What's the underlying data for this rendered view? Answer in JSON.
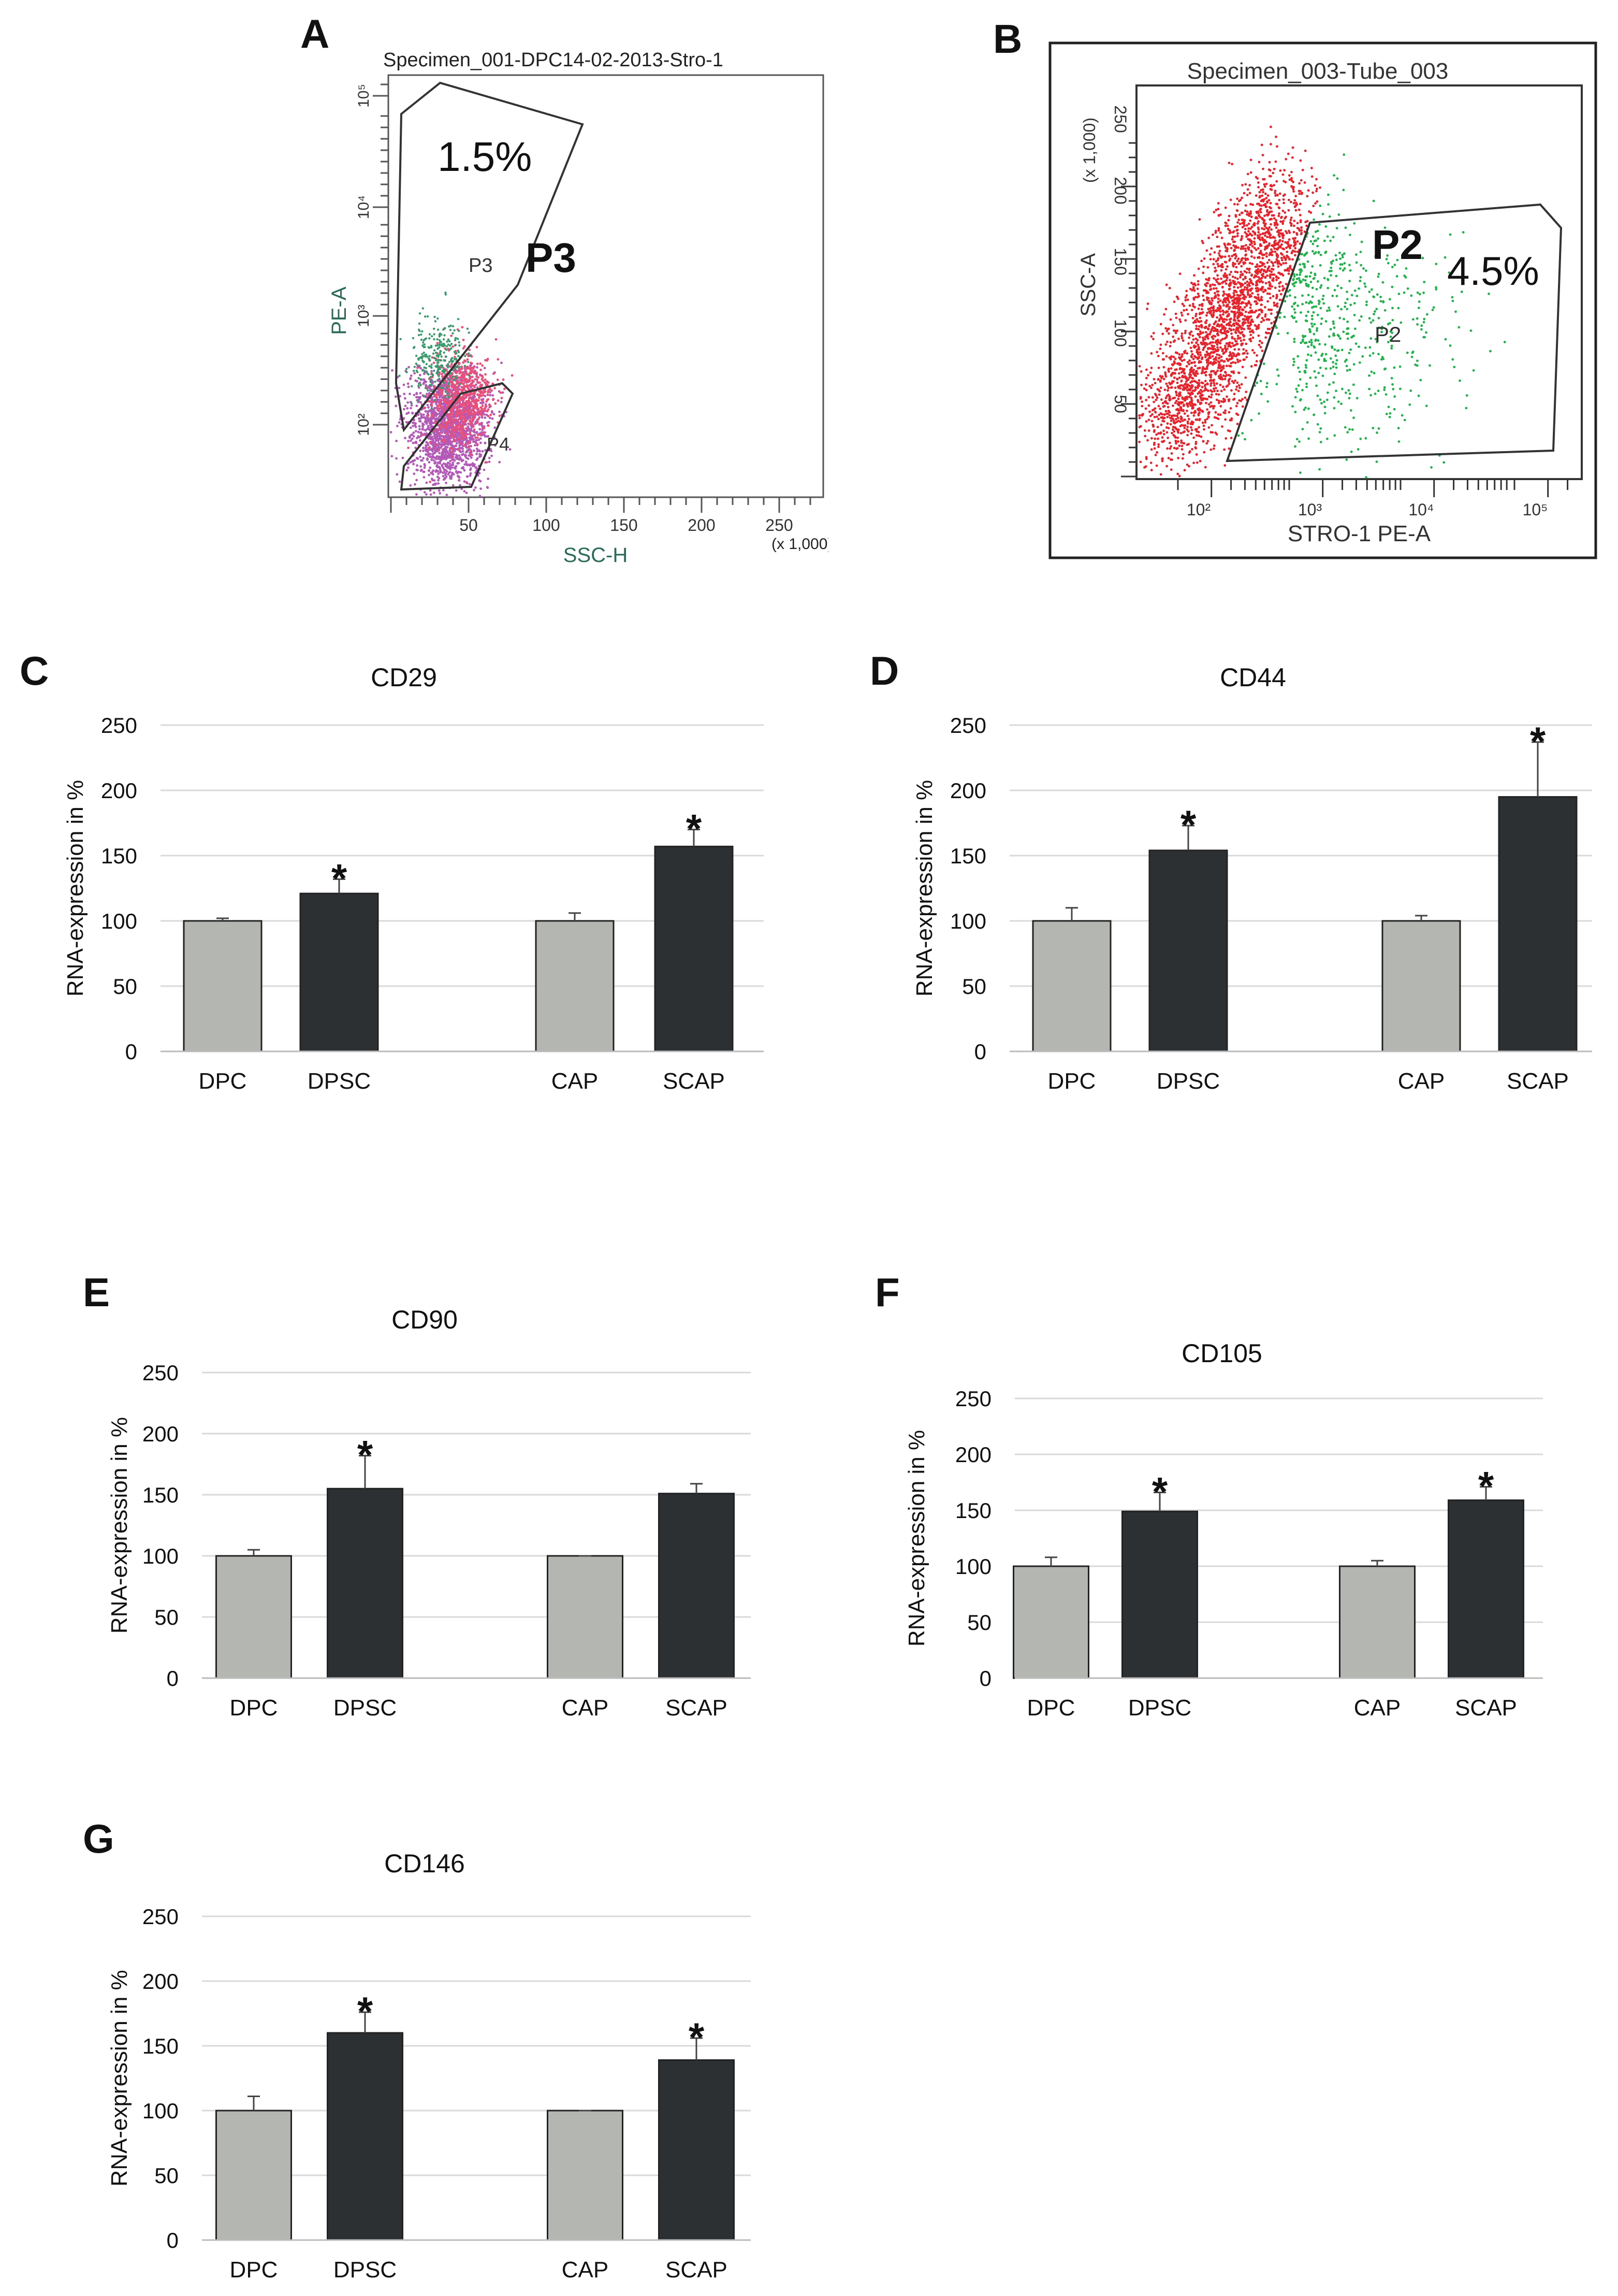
{
  "figure": {
    "panel_letters": [
      "A",
      "B",
      "C",
      "D",
      "E",
      "F",
      "G"
    ]
  },
  "panel_a": {
    "letter": "A",
    "title": "Specimen_001-DPC14-02-2013-Stro-1",
    "x_axis_label": "SSC-H",
    "x_axis_unit": "(x 1,000)",
    "y_axis_label": "PE-A",
    "x_ticks": [
      "50",
      "100",
      "150",
      "200",
      "250"
    ],
    "y_ticks": [
      "10²",
      "10³",
      "10⁴",
      "10⁵"
    ],
    "gate_p3_label": "P3",
    "gate_p3_big_label": "P3",
    "gate_p3_percent": "1.5%",
    "gate_p4_label": "P4",
    "colors": {
      "green_events": "#3a9a6e",
      "pink_events": "#e8507a",
      "purple_events": "#b35ab8"
    }
  },
  "panel_b": {
    "letter": "B",
    "title": "Specimen_003-Tube_003",
    "x_axis_label": "STRO-1 PE-A",
    "y_axis_label": "SSC-A",
    "y_axis_unit": "(x 1,000)",
    "x_ticks": [
      "10²",
      "10³",
      "10⁴",
      "10⁵"
    ],
    "y_ticks": [
      "50",
      "100",
      "150",
      "200",
      "250"
    ],
    "gate_p2_label": "P2",
    "gate_p2_big_label": "P2",
    "gate_p2_percent": "4.5%",
    "colors": {
      "red_events": "#e8232b",
      "green_events": "#22b24c"
    }
  },
  "chart_data": [
    {
      "type": "bar",
      "panel": "C",
      "title": "CD29",
      "categories": [
        "DPC",
        "DPSC",
        "CAP",
        "SCAP"
      ],
      "values": [
        100,
        121,
        100,
        157
      ],
      "errors": [
        2,
        11,
        6,
        13
      ],
      "significant": [
        false,
        true,
        false,
        true
      ],
      "ylabel": "RNA-expression in %",
      "ylim": [
        0,
        250
      ],
      "yticks": [
        "0",
        "50",
        "100",
        "150",
        "200",
        "250"
      ]
    },
    {
      "type": "bar",
      "panel": "D",
      "title": "CD44",
      "categories": [
        "DPC",
        "DPSC",
        "CAP",
        "SCAP"
      ],
      "values": [
        100,
        154,
        100,
        195
      ],
      "errors": [
        10,
        19,
        4,
        42
      ],
      "significant": [
        false,
        true,
        false,
        true
      ],
      "ylabel": "RNA-expression in %",
      "ylim": [
        0,
        250
      ],
      "yticks": [
        "0",
        "50",
        "100",
        "150",
        "200",
        "250"
      ]
    },
    {
      "type": "bar",
      "panel": "E",
      "title": "CD90",
      "categories": [
        "DPC",
        "DPSC",
        "CAP",
        "SCAP"
      ],
      "values": [
        100,
        155,
        100,
        151
      ],
      "errors": [
        5,
        27,
        0,
        8
      ],
      "significant": [
        false,
        true,
        false,
        false
      ],
      "ylabel": "RNA-expression in %",
      "ylim": [
        0,
        250
      ],
      "yticks": [
        "0",
        "50",
        "100",
        "150",
        "200",
        "250"
      ]
    },
    {
      "type": "bar",
      "panel": "F",
      "title": "CD105",
      "categories": [
        "DPC",
        "DPSC",
        "CAP",
        "SCAP"
      ],
      "values": [
        100,
        149,
        100,
        159
      ],
      "errors": [
        8,
        17,
        5,
        12
      ],
      "significant": [
        false,
        true,
        false,
        true
      ],
      "ylabel": "RNA-expression in %",
      "ylim": [
        0,
        250
      ],
      "yticks": [
        "0",
        "50",
        "100",
        "150",
        "200",
        "250"
      ]
    },
    {
      "type": "bar",
      "panel": "G",
      "title": "CD146",
      "categories": [
        "DPC",
        "DPSC",
        "CAP",
        "SCAP"
      ],
      "values": [
        100,
        160,
        100,
        139
      ],
      "errors": [
        11,
        16,
        0,
        17
      ],
      "significant": [
        false,
        true,
        false,
        true
      ],
      "ylabel": "RNA-expression in %",
      "ylim": [
        0,
        250
      ],
      "yticks": [
        "0",
        "50",
        "100",
        "150",
        "200",
        "250"
      ]
    }
  ],
  "style": {
    "light_bar": "#b4b6b2",
    "dark_bar": "#2c3033",
    "grid": "#d9d9d9",
    "significance_marker": "*"
  }
}
